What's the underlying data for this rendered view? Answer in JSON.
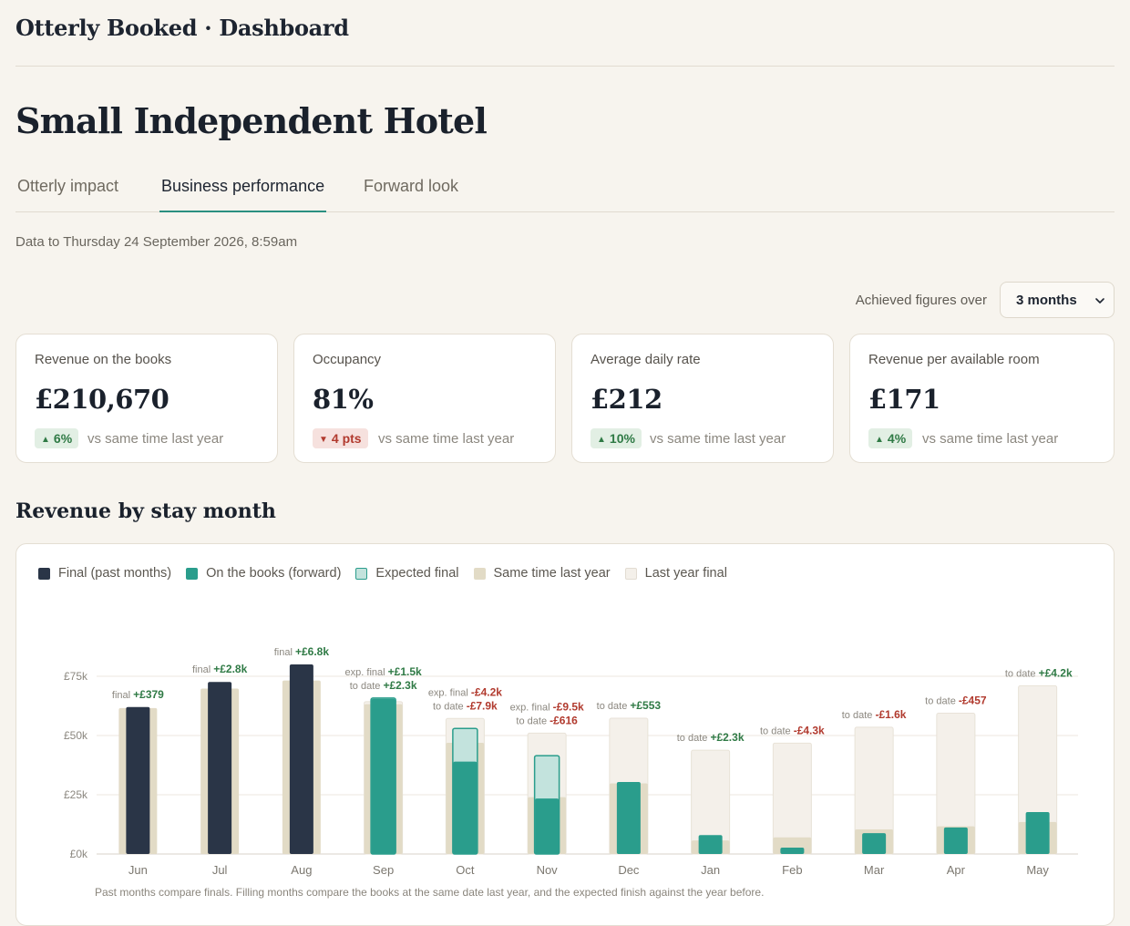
{
  "header": {
    "title": "Otterly Booked · Dashboard"
  },
  "hotel_name": "Small Independent Hotel",
  "tabs": [
    {
      "label": "Otterly impact",
      "active": false
    },
    {
      "label": "Business performance",
      "active": true
    },
    {
      "label": "Forward look",
      "active": false
    }
  ],
  "data_to": "Data to Thursday 24 September 2026, 8:59am",
  "period": {
    "label": "Achieved figures over",
    "value": "3 months"
  },
  "cards": [
    {
      "label": "Revenue on the books",
      "value": "£210,670",
      "change": "6%",
      "direction": "up",
      "comparison": "vs same time last year"
    },
    {
      "label": "Occupancy",
      "value": "81%",
      "change": "4 pts",
      "direction": "down",
      "comparison": "vs same time last year"
    },
    {
      "label": "Average daily rate",
      "value": "£212",
      "change": "10%",
      "direction": "up",
      "comparison": "vs same time last year"
    },
    {
      "label": "Revenue per available room",
      "value": "£171",
      "change": "4%",
      "direction": "up",
      "comparison": "vs same time last year"
    }
  ],
  "section_title": "Revenue by stay month",
  "legend": [
    {
      "label": "Final (past months)",
      "color": "#2a3547"
    },
    {
      "label": "On the books (forward)",
      "color": "#2a9d8c"
    },
    {
      "label": "Expected final",
      "color": "#c3e3dd"
    },
    {
      "label": "Same time last year",
      "color": "#e2dbc6"
    },
    {
      "label": "Last year final",
      "color": "#f4f0ea"
    }
  ],
  "footnote": "Past months compare finals. Filling months compare the books at the same date last year, and the expected finish against the year before.",
  "chart_data": {
    "type": "bar",
    "yticks": [
      "£0k",
      "£25k",
      "£50k",
      "£75k"
    ],
    "ylim": [
      0,
      80000
    ],
    "categories": [
      "Jun",
      "Jul",
      "Aug",
      "Sep",
      "Oct",
      "Nov",
      "Dec",
      "Jan",
      "Feb",
      "Mar",
      "Apr",
      "May"
    ],
    "months": [
      {
        "month": "Jun",
        "kind": "final",
        "current": 62000,
        "same_time_last_year": 61600,
        "annotations": [
          {
            "prefix": "final",
            "value": "+£379",
            "sign": "pos"
          }
        ]
      },
      {
        "month": "Jul",
        "kind": "final",
        "current": 72600,
        "same_time_last_year": 69800,
        "annotations": [
          {
            "prefix": "final",
            "value": "+£2.8k",
            "sign": "pos"
          }
        ]
      },
      {
        "month": "Aug",
        "kind": "final",
        "current": 80000,
        "same_time_last_year": 73200,
        "annotations": [
          {
            "prefix": "final",
            "value": "+£6.8k",
            "sign": "pos"
          }
        ]
      },
      {
        "month": "Sep",
        "kind": "forward",
        "current": 65500,
        "same_time_last_year": 63200,
        "expected_final": 65800,
        "last_year_final": 64300,
        "annotations": [
          {
            "prefix": "exp. final",
            "value": "+£1.5k",
            "sign": "pos"
          },
          {
            "prefix": "to date",
            "value": "+£2.3k",
            "sign": "pos"
          }
        ]
      },
      {
        "month": "Oct",
        "kind": "forward",
        "current": 39000,
        "same_time_last_year": 46900,
        "expected_final": 53000,
        "last_year_final": 57200,
        "annotations": [
          {
            "prefix": "exp. final",
            "value": "-£4.2k",
            "sign": "neg"
          },
          {
            "prefix": "to date",
            "value": "-£7.9k",
            "sign": "neg"
          }
        ]
      },
      {
        "month": "Nov",
        "kind": "forward",
        "current": 23400,
        "same_time_last_year": 24000,
        "expected_final": 41500,
        "last_year_final": 51000,
        "annotations": [
          {
            "prefix": "exp. final",
            "value": "-£9.5k",
            "sign": "neg"
          },
          {
            "prefix": "to date",
            "value": "-£616",
            "sign": "neg"
          }
        ]
      },
      {
        "month": "Dec",
        "kind": "forward",
        "current": 30400,
        "same_time_last_year": 29800,
        "last_year_final": 57300,
        "annotations": [
          {
            "prefix": "to date",
            "value": "+£553",
            "sign": "pos"
          }
        ]
      },
      {
        "month": "Jan",
        "kind": "forward",
        "current": 8000,
        "same_time_last_year": 5700,
        "last_year_final": 43800,
        "annotations": [
          {
            "prefix": "to date",
            "value": "+£2.3k",
            "sign": "pos"
          }
        ]
      },
      {
        "month": "Feb",
        "kind": "forward",
        "current": 2700,
        "same_time_last_year": 7000,
        "last_year_final": 46800,
        "annotations": [
          {
            "prefix": "to date",
            "value": "-£4.3k",
            "sign": "neg"
          }
        ]
      },
      {
        "month": "Mar",
        "kind": "forward",
        "current": 8800,
        "same_time_last_year": 10400,
        "last_year_final": 53500,
        "annotations": [
          {
            "prefix": "to date",
            "value": "-£1.6k",
            "sign": "neg"
          }
        ]
      },
      {
        "month": "Apr",
        "kind": "forward",
        "current": 11200,
        "same_time_last_year": 11700,
        "last_year_final": 59400,
        "annotations": [
          {
            "prefix": "to date",
            "value": "-£457",
            "sign": "neg"
          }
        ]
      },
      {
        "month": "May",
        "kind": "forward",
        "current": 17700,
        "same_time_last_year": 13500,
        "last_year_final": 71000,
        "annotations": [
          {
            "prefix": "to date",
            "value": "+£4.2k",
            "sign": "pos"
          }
        ]
      }
    ]
  }
}
